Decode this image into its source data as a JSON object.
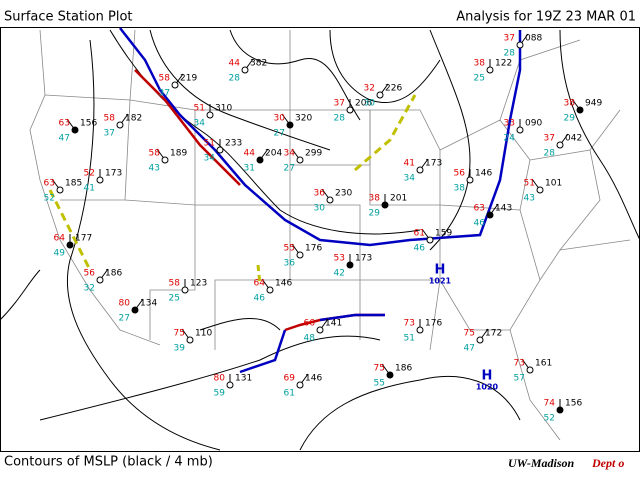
{
  "header": {
    "title": "Surface Station Plot",
    "analysis": "Analysis for 19Z 23 MAR 01"
  },
  "footer": {
    "contours": "Contours of MSLP (black / 4 mb)",
    "org": "UW-Madison",
    "dept": "Dept o"
  },
  "highs": [
    {
      "symbol": "H",
      "pressure": "1021"
    },
    {
      "symbol": "H",
      "pressure": "1020"
    }
  ],
  "stations": [
    {
      "temp": 63,
      "dew": 47,
      "slp": "156"
    },
    {
      "temp": 52,
      "dew": 41,
      "slp": "173"
    },
    {
      "temp": 58,
      "dew": 37,
      "slp": "182"
    },
    {
      "temp": 63,
      "dew": 52,
      "slp": "185"
    },
    {
      "temp": 64,
      "dew": 49,
      "slp": "177"
    },
    {
      "temp": 58,
      "dew": 37,
      "slp": "219"
    },
    {
      "temp": 58,
      "dew": 43,
      "slp": "189"
    },
    {
      "temp": 51,
      "dew": 34,
      "slp": "233"
    },
    {
      "temp": 44,
      "dew": 31,
      "slp": "204"
    },
    {
      "temp": 34,
      "dew": 27,
      "slp": "299"
    },
    {
      "temp": 51,
      "dew": 34,
      "slp": "310"
    },
    {
      "temp": 44,
      "dew": 28,
      "slp": "382"
    },
    {
      "temp": 30,
      "dew": 27,
      "slp": "320"
    },
    {
      "temp": 37,
      "dew": 28,
      "slp": "206"
    },
    {
      "temp": 32,
      "dew": 30,
      "slp": "226"
    },
    {
      "temp": 36,
      "dew": 30,
      "slp": "230"
    },
    {
      "temp": 38,
      "dew": 29,
      "slp": "201"
    },
    {
      "temp": 41,
      "dew": 34,
      "slp": "173"
    },
    {
      "temp": 61,
      "dew": 46,
      "slp": "159"
    },
    {
      "temp": 56,
      "dew": 38,
      "slp": "146"
    },
    {
      "temp": 63,
      "dew": 46,
      "slp": "143"
    },
    {
      "temp": 51,
      "dew": 43,
      "slp": "101"
    },
    {
      "temp": 33,
      "dew": 24,
      "slp": "090"
    },
    {
      "temp": 37,
      "dew": 28,
      "slp": "042"
    },
    {
      "temp": 38,
      "dew": 29,
      "slp": "949"
    },
    {
      "temp": 38,
      "dew": 25,
      "slp": "122"
    },
    {
      "temp": 37,
      "dew": 28,
      "slp": "088"
    },
    {
      "temp": 55,
      "dew": 36,
      "slp": "176"
    },
    {
      "temp": 53,
      "dew": 42,
      "slp": "173"
    },
    {
      "temp": 66,
      "dew": 48,
      "slp": "141"
    },
    {
      "temp": 64,
      "dew": 46,
      "slp": "146"
    },
    {
      "temp": 58,
      "dew": 25,
      "slp": "123"
    },
    {
      "temp": 80,
      "dew": 27,
      "slp": "134"
    },
    {
      "temp": 75,
      "dew": 39,
      "slp": "110"
    },
    {
      "temp": 80,
      "dew": 59,
      "slp": "131"
    },
    {
      "temp": 69,
      "dew": 61,
      "slp": "146"
    },
    {
      "temp": 75,
      "dew": 55,
      "slp": "186"
    },
    {
      "temp": 73,
      "dew": 51,
      "slp": "176"
    },
    {
      "temp": 75,
      "dew": 47,
      "slp": "172"
    },
    {
      "temp": 73,
      "dew": 57,
      "slp": "161"
    },
    {
      "temp": 74,
      "dew": 52,
      "slp": "156"
    },
    {
      "temp": 56,
      "dew": 32,
      "slp": "186"
    }
  ]
}
